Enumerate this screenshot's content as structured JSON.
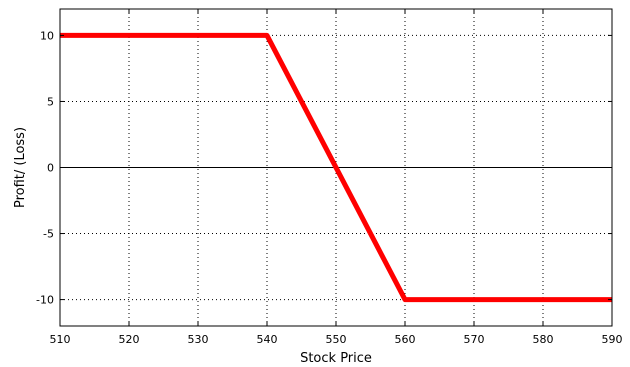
{
  "chart_data": {
    "type": "line",
    "xlabel": "Stock Price",
    "ylabel": "Profit/ (Loss)",
    "xlim": [
      510,
      590
    ],
    "ylim": [
      -12,
      12
    ],
    "x_ticks": [
      510,
      520,
      530,
      540,
      550,
      560,
      570,
      580,
      590
    ],
    "y_ticks": [
      10,
      5,
      0,
      -5,
      -10
    ],
    "grid": true,
    "zero_line": true,
    "series": [
      {
        "color": "#ff0000",
        "x": [
          510,
          540,
          560,
          590
        ],
        "y": [
          10,
          10,
          -10,
          -10
        ]
      }
    ]
  }
}
